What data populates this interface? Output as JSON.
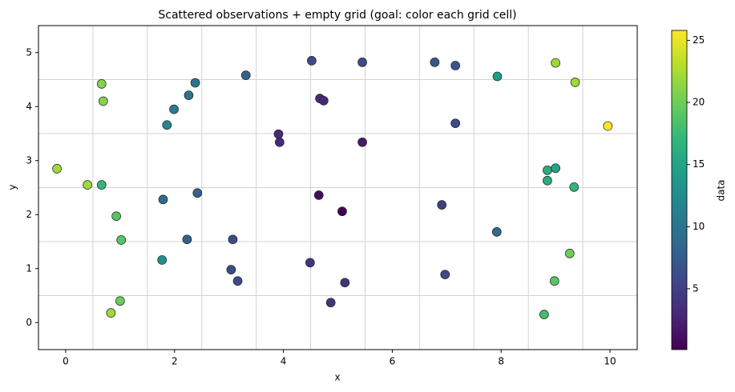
{
  "chart_data": {
    "type": "scatter",
    "title": "Scattered observations + empty grid (goal: color each grid cell)",
    "x_label": "x",
    "y_label": "y",
    "xlim": [
      -0.5,
      10.5
    ],
    "ylim": [
      -0.5,
      5.5
    ],
    "xticks": [
      0,
      2,
      4,
      6,
      8,
      10
    ],
    "yticks": [
      0,
      1,
      2,
      3,
      4,
      5
    ],
    "grid_x": [
      0.5,
      1.5,
      2.5,
      3.5,
      4.5,
      5.5,
      6.5,
      7.5,
      8.5,
      9.5
    ],
    "grid_y": [
      0.5,
      1.5,
      2.5,
      3.5,
      4.5
    ],
    "colormap": "viridis",
    "colorbar": {
      "label": "data",
      "clim": [
        0.1,
        25.8
      ],
      "ticks": [
        5,
        10,
        15,
        20,
        25
      ]
    },
    "x": [
      0.66,
      0.69,
      -0.16,
      0.4,
      0.66,
      0.93,
      1.02,
      1.0,
      0.83,
      1.77,
      1.79,
      1.86,
      1.99,
      2.26,
      2.38,
      2.23,
      2.42,
      3.31,
      3.07,
      3.04,
      3.16,
      3.91,
      3.93,
      4.52,
      4.67,
      4.74,
      4.49,
      4.65,
      4.87,
      5.08,
      5.13,
      5.45,
      5.45,
      6.78,
      7.16,
      7.16,
      6.91,
      6.97,
      7.92,
      7.93,
      9.0,
      9.36,
      9.96,
      8.85,
      9.0,
      8.85,
      9.34,
      9.26,
      8.98,
      8.79
    ],
    "y": [
      4.42,
      4.1,
      2.85,
      2.55,
      2.55,
      1.97,
      1.53,
      0.4,
      0.18,
      1.16,
      2.28,
      3.66,
      3.95,
      4.21,
      4.44,
      1.54,
      2.4,
      4.58,
      1.54,
      0.98,
      0.77,
      3.49,
      3.34,
      4.85,
      4.15,
      4.11,
      1.11,
      2.36,
      0.37,
      2.06,
      0.74,
      4.82,
      3.34,
      4.82,
      4.76,
      3.69,
      2.18,
      0.89,
      1.68,
      4.56,
      4.81,
      4.45,
      3.64,
      2.82,
      2.86,
      2.63,
      2.51,
      1.28,
      0.77,
      0.15
    ],
    "c": [
      21,
      21,
      22,
      22,
      17,
      19,
      19,
      20,
      22,
      13,
      9,
      12,
      11,
      10,
      10,
      8,
      8,
      8,
      6,
      6,
      6,
      3,
      3,
      6,
      3,
      3,
      4,
      1,
      4,
      0.1,
      4,
      6,
      2,
      7,
      7,
      6,
      5,
      6,
      9,
      14,
      22,
      22,
      25.8,
      16,
      15,
      16,
      17,
      20,
      19,
      18
    ]
  }
}
